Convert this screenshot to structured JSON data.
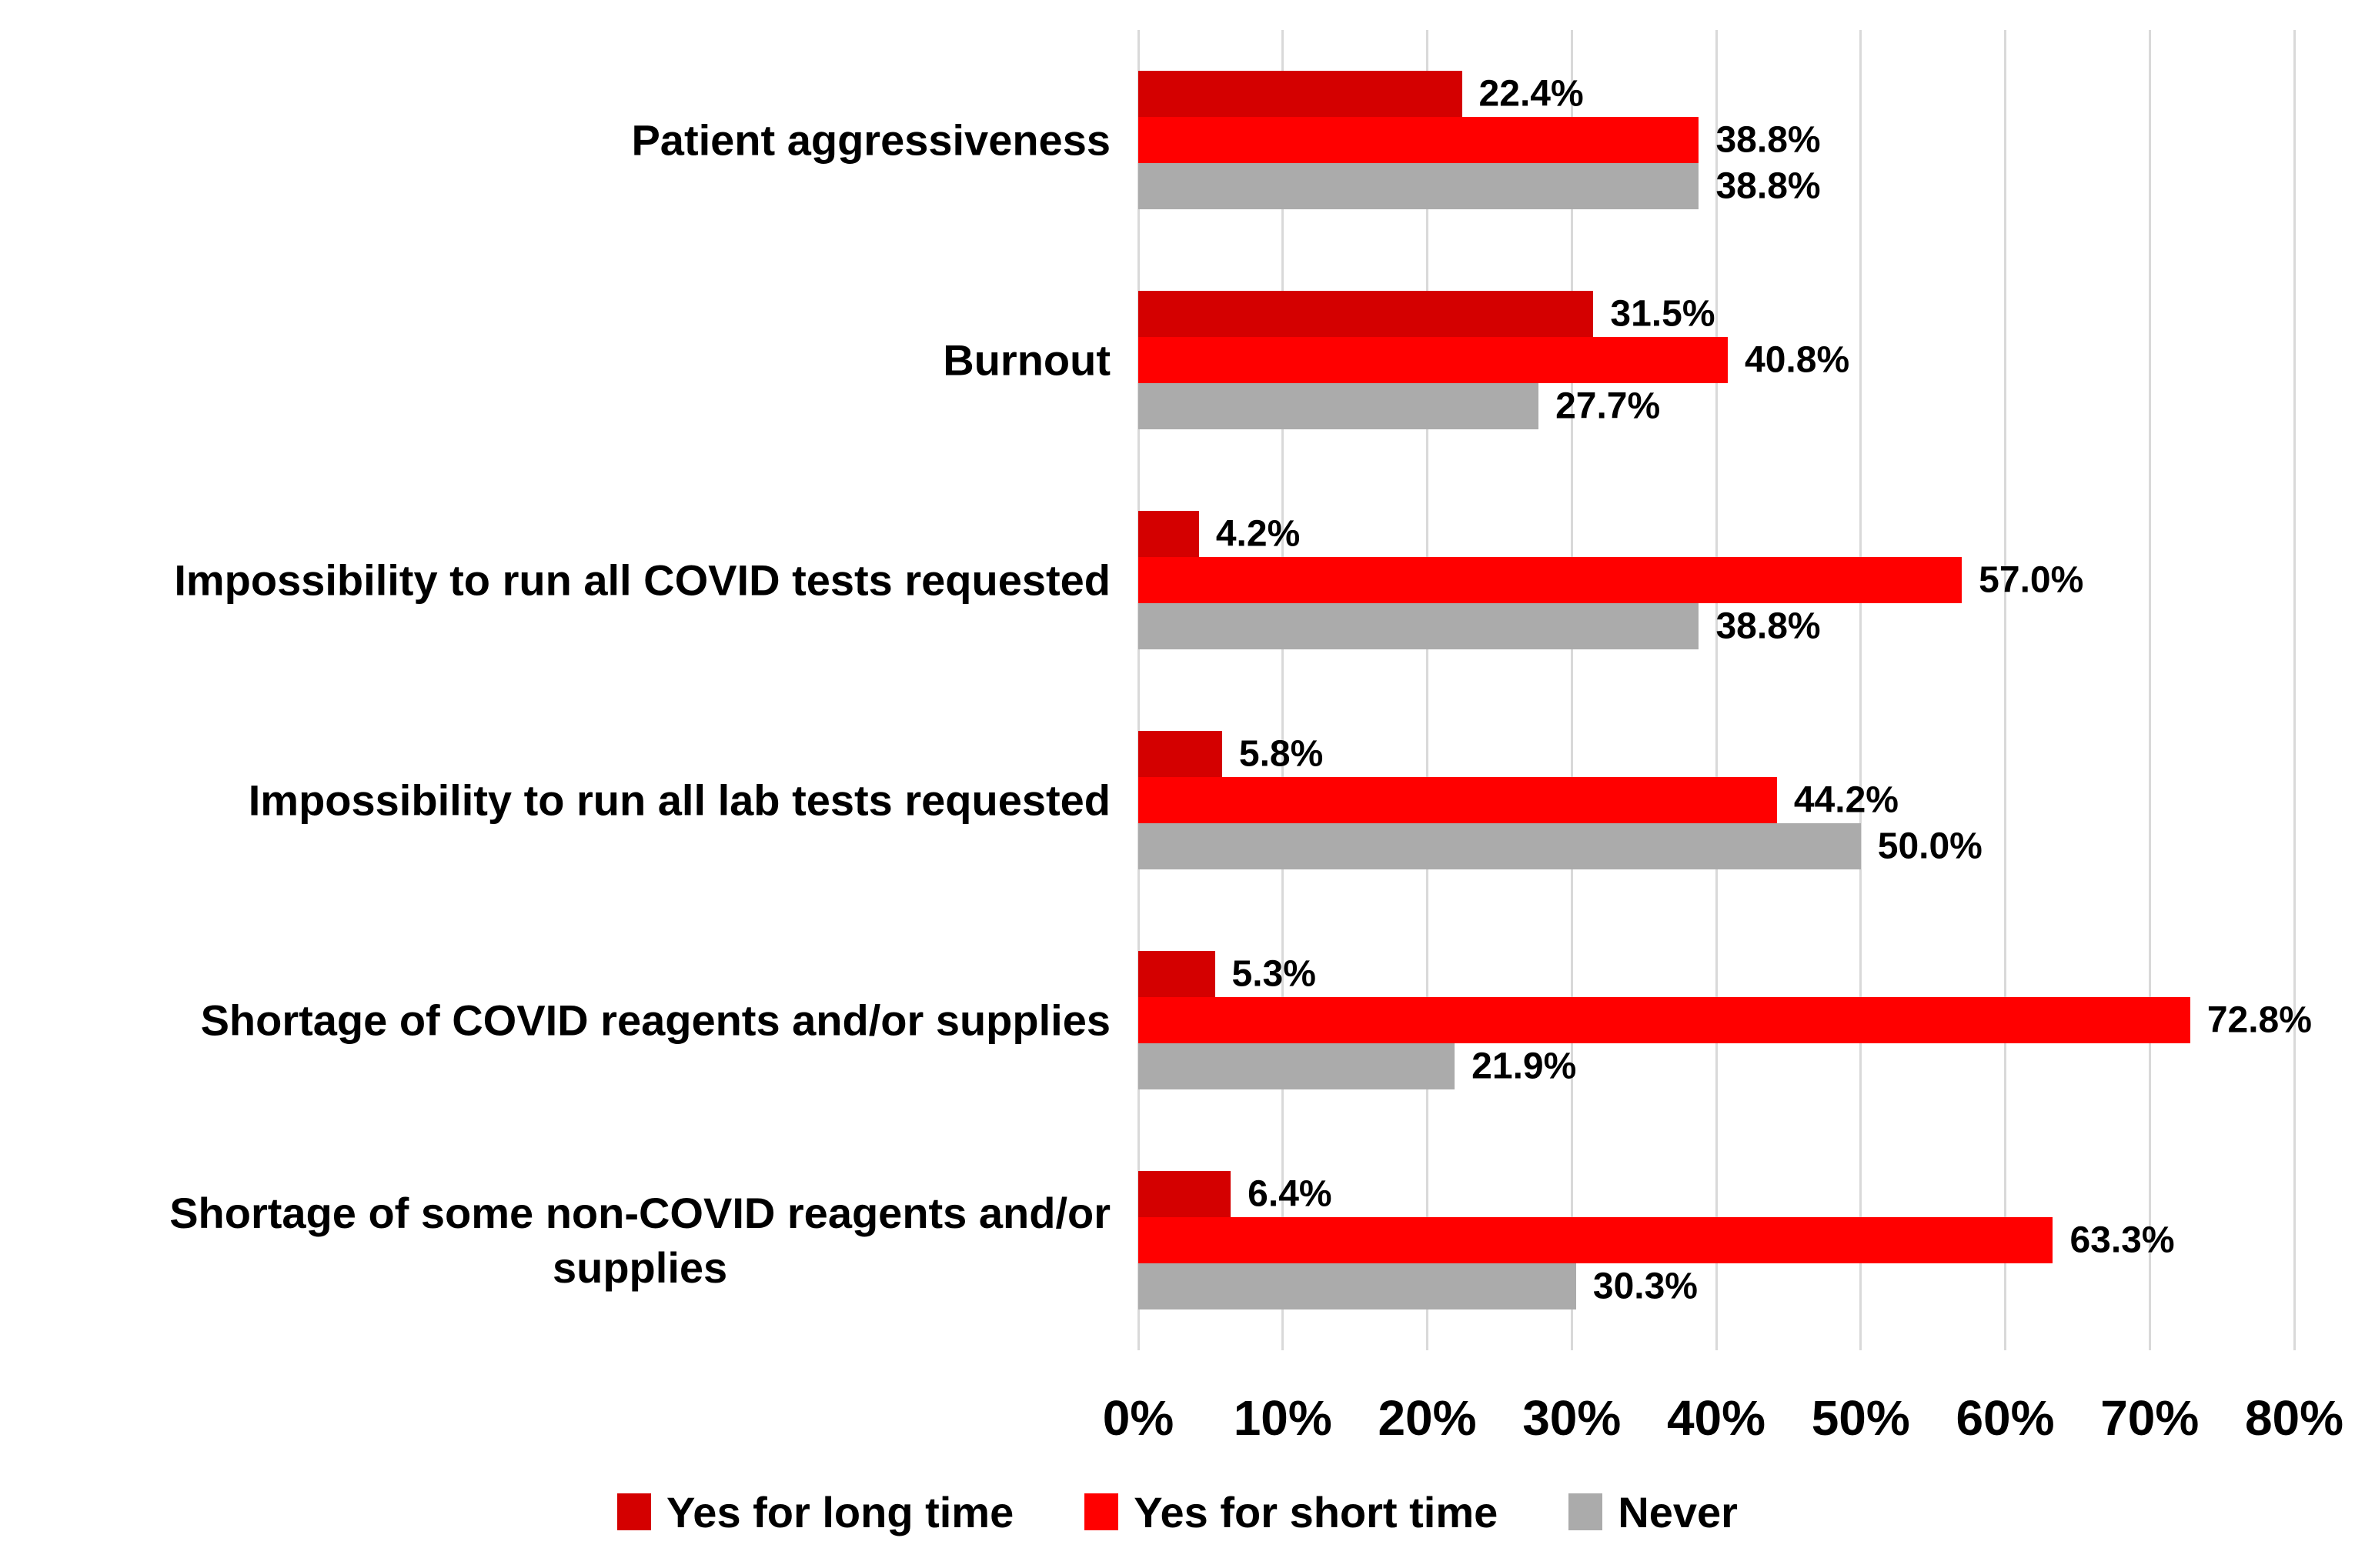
{
  "chart_data": {
    "type": "bar",
    "orientation": "horizontal",
    "title": "",
    "categories": [
      "Patient aggressiveness",
      "Burnout",
      "Impossibility to run all COVID tests requested",
      "Impossibility to run all lab tests requested",
      "Shortage of COVID reagents and/or supplies",
      "Shortage of some non-COVID reagents and/or\nsupplies"
    ],
    "series": [
      {
        "name": "Yes for long time",
        "color": "#D40000",
        "values": [
          22.4,
          31.5,
          4.2,
          5.8,
          5.3,
          6.4
        ],
        "labels": [
          "22.4%",
          "31.5%",
          "4.2%",
          "5.8%",
          "5.3%",
          "6.4%"
        ]
      },
      {
        "name": "Yes for short time",
        "color": "#FF0000",
        "values": [
          38.8,
          40.8,
          57.0,
          44.2,
          72.8,
          63.3
        ],
        "labels": [
          "38.8%",
          "40.8%",
          "57.0%",
          "44.2%",
          "72.8%",
          "63.3%"
        ]
      },
      {
        "name": "Never",
        "color": "#ABABAB",
        "values": [
          38.8,
          27.7,
          38.8,
          50.0,
          21.9,
          30.3
        ],
        "labels": [
          "38.8%",
          "27.7%",
          "38.8%",
          "50.0%",
          "21.9%",
          "30.3%"
        ]
      }
    ],
    "x_axis": {
      "min": 0,
      "max": 80,
      "step": 10,
      "tick_labels": [
        "0%",
        "10%",
        "20%",
        "30%",
        "40%",
        "50%",
        "60%",
        "70%",
        "80%"
      ]
    },
    "legend": {
      "position": "bottom",
      "entries": [
        "Yes for long time",
        "Yes for short time",
        "Never"
      ]
    },
    "grid": {
      "show": true,
      "color": "#D9D9D9"
    },
    "colors": {
      "background": "#FFFFFF",
      "text": "#000000"
    }
  }
}
